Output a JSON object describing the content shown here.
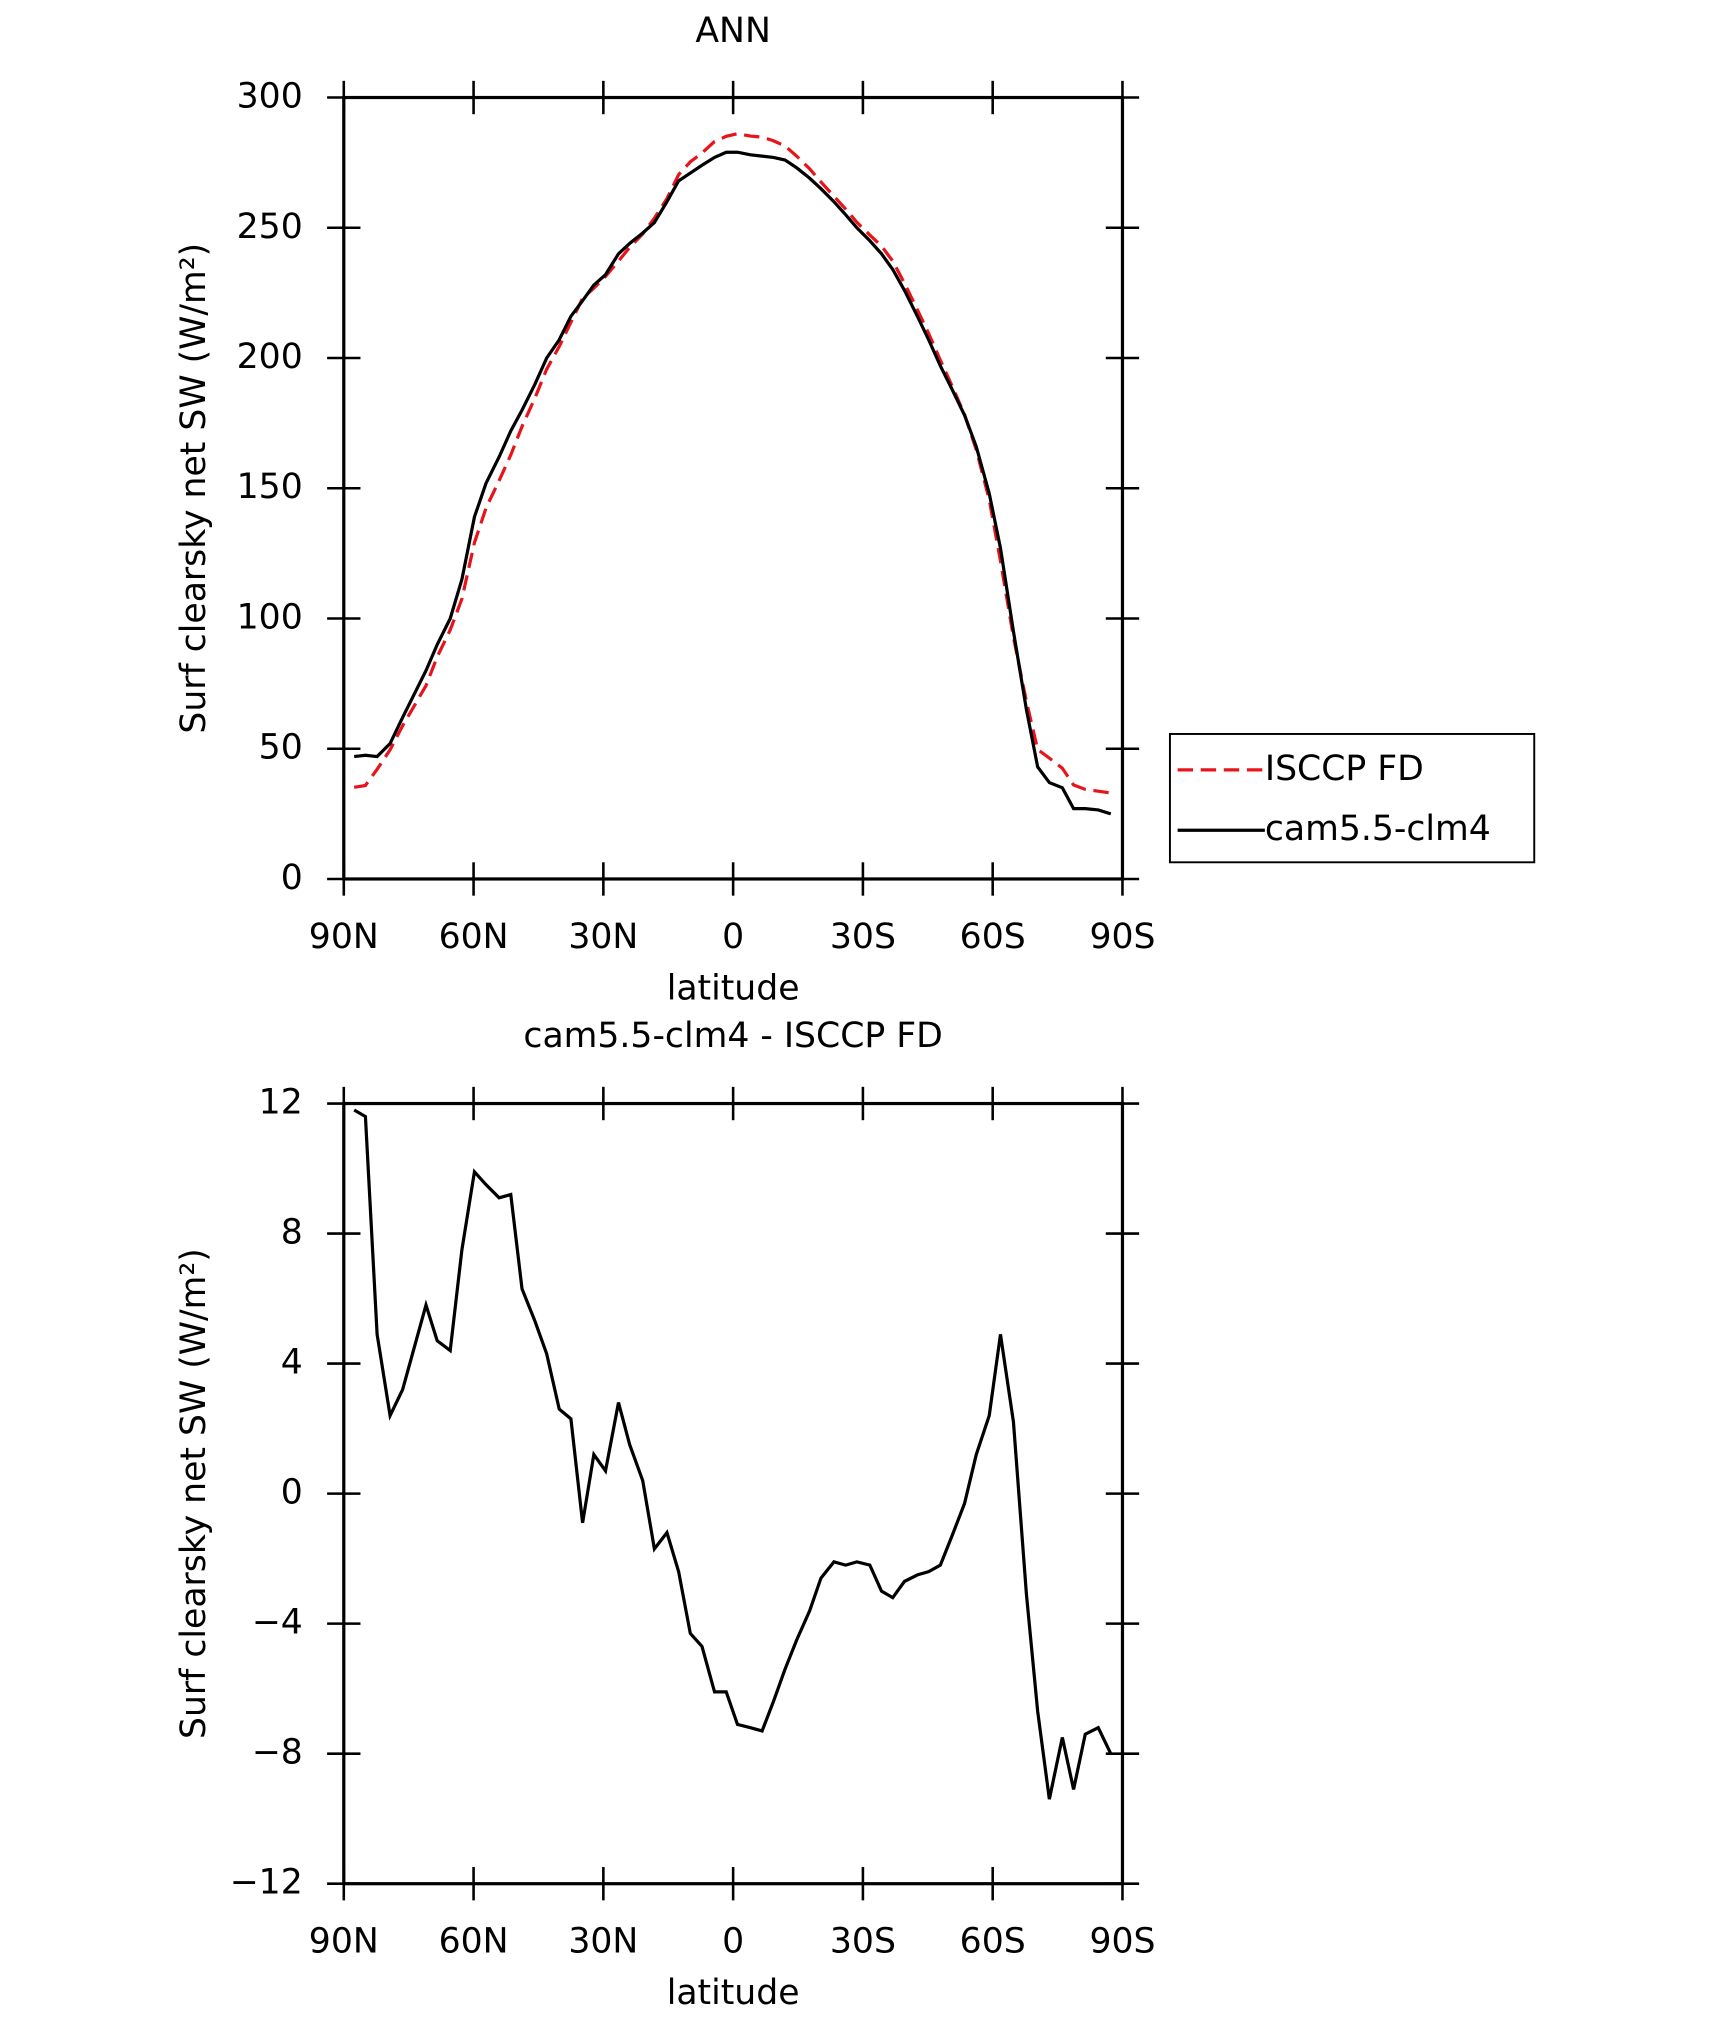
{
  "chart_data": [
    {
      "type": "line",
      "title": "ANN",
      "xlabel": "latitude",
      "ylabel": "Surf clearsky net SW (W/m²)",
      "x": [
        87.6,
        85,
        82.3,
        79.3,
        76.4,
        71,
        68.4,
        65.4,
        62.7,
        59.8,
        57.1,
        54.1,
        51.4,
        48.8,
        45.8,
        43.1,
        40.2,
        37.5,
        34.8,
        32.2,
        29.5,
        26.5,
        23.9,
        20.9,
        18.2,
        15.3,
        12.6,
        9.9,
        7.2,
        4.3,
        1.6,
        -1,
        -4,
        -6.7,
        -9.3,
        -12,
        -14.7,
        -17.7,
        -20.3,
        -23.3,
        -26,
        -28.6,
        -31.6,
        -34.3,
        -36.9,
        -39.6,
        -42.6,
        -45.2,
        -47.9,
        -50.6,
        -53.5,
        -56.2,
        -59.2,
        -61.8,
        -64.8,
        -67.8,
        -70.4,
        -73.1,
        -76.1,
        -78.7,
        -81.4,
        -84.4,
        -87.3
      ],
      "series": [
        {
          "name": "ISCCP FD",
          "color": "#e8141c",
          "style": "dashed",
          "values": [
            35.2,
            35.9,
            42.1,
            49.6,
            58.8,
            74.2,
            85.3,
            95.6,
            107.5,
            129.1,
            142.5,
            152.9,
            162.8,
            173.7,
            184.7,
            195.7,
            204.4,
            213.7,
            222.9,
            226.8,
            231.3,
            237.2,
            242.5,
            247.6,
            253.7,
            261.2,
            270.4,
            275.3,
            278.7,
            283.1,
            285.1,
            286.1,
            285.2,
            284.8,
            283.4,
            281.4,
            277.5,
            272.6,
            267.6,
            262.1,
            257.2,
            252.1,
            247.2,
            243,
            237.2,
            228.7,
            218.5,
            209.4,
            199.2,
            189.3,
            178.3,
            164.8,
            145.6,
            122.1,
            92.8,
            68.1,
            49.7,
            46.4,
            42.5,
            36.1,
            34.4,
            33.7,
            33
          ]
        },
        {
          "name": "cam5.5-clm4",
          "color": "#000000",
          "style": "solid",
          "values": [
            47,
            47.5,
            47,
            52,
            62,
            80,
            90,
            100,
            115,
            139,
            152,
            162,
            172,
            180,
            190,
            200,
            207,
            216,
            222,
            228,
            232,
            240,
            244,
            248,
            252,
            260,
            268,
            271,
            274,
            277,
            279,
            279,
            278,
            277.5,
            277,
            276,
            273,
            269,
            265,
            260,
            255,
            250,
            245,
            240,
            234,
            226,
            216,
            207,
            197,
            188,
            178,
            166,
            148,
            127,
            95,
            65,
            43,
            37,
            35,
            27,
            27,
            26.5,
            25
          ]
        }
      ],
      "xlim": [
        90,
        -90
      ],
      "xticks": [
        {
          "value": 90,
          "label": "90N"
        },
        {
          "value": 60,
          "label": "60N"
        },
        {
          "value": 30,
          "label": "30N"
        },
        0,
        {
          "value": -30,
          "label": "30S"
        },
        {
          "value": -60,
          "label": "60S"
        },
        {
          "value": -90,
          "label": "90S"
        }
      ],
      "ylim": [
        0,
        300
      ],
      "yticks": [
        0,
        50,
        100,
        150,
        200,
        250,
        300
      ],
      "legend": "right"
    },
    {
      "type": "line",
      "title": "cam5.5-clm4 - ISCCP FD",
      "xlabel": "latitude",
      "ylabel": "Surf clearsky net SW (W/m²)",
      "x": [
        87.6,
        85,
        82.3,
        79.3,
        76.4,
        71,
        68.4,
        65.4,
        62.7,
        59.8,
        57.1,
        54.1,
        51.4,
        48.8,
        45.8,
        43.1,
        40.2,
        37.5,
        34.8,
        32.2,
        29.5,
        26.5,
        23.9,
        20.9,
        18.2,
        15.3,
        12.6,
        9.9,
        7.2,
        4.3,
        1.6,
        -1,
        -4,
        -6.7,
        -9.3,
        -12,
        -14.7,
        -17.7,
        -20.3,
        -23.3,
        -26,
        -28.6,
        -31.6,
        -34.3,
        -36.9,
        -39.6,
        -42.6,
        -45.2,
        -47.9,
        -50.6,
        -53.5,
        -56.2,
        -59.2,
        -61.8,
        -64.8,
        -67.8,
        -70.4,
        -73.1,
        -76.1,
        -78.7,
        -81.4,
        -84.4,
        -87.3
      ],
      "series": [
        {
          "color": "#000000",
          "style": "solid",
          "values": [
            11.8,
            11.6,
            4.9,
            2.4,
            3.2,
            5.8,
            4.7,
            4.4,
            7.5,
            9.9,
            9.5,
            9.1,
            9.2,
            6.3,
            5.3,
            4.3,
            2.6,
            2.3,
            -0.9,
            1.2,
            0.7,
            2.8,
            1.5,
            0.4,
            -1.7,
            -1.2,
            -2.4,
            -4.3,
            -4.7,
            -6.1,
            -6.1,
            -7.1,
            -7.2,
            -7.3,
            -6.4,
            -5.4,
            -4.5,
            -3.6,
            -2.6,
            -2.1,
            -2.2,
            -2.1,
            -2.2,
            -3,
            -3.2,
            -2.7,
            -2.5,
            -2.4,
            -2.2,
            -1.3,
            -0.3,
            1.2,
            2.4,
            4.9,
            2.2,
            -3.1,
            -6.7,
            -9.4,
            -7.5,
            -9.1,
            -7.4,
            -7.2,
            -8
          ]
        }
      ],
      "xlim": [
        90,
        -90
      ],
      "xticks": [
        {
          "value": 90,
          "label": "90N"
        },
        {
          "value": 60,
          "label": "60N"
        },
        {
          "value": 30,
          "label": "30N"
        },
        0,
        {
          "value": -30,
          "label": "30S"
        },
        {
          "value": -60,
          "label": "60S"
        },
        {
          "value": -90,
          "label": "90S"
        }
      ],
      "ylim": [
        -12,
        12
      ],
      "yticks": [
        {
          "value": -12,
          "label": "−12"
        },
        {
          "value": -8,
          "label": "−8"
        },
        {
          "value": -4,
          "label": "−4"
        },
        0,
        4,
        8,
        12
      ]
    }
  ]
}
